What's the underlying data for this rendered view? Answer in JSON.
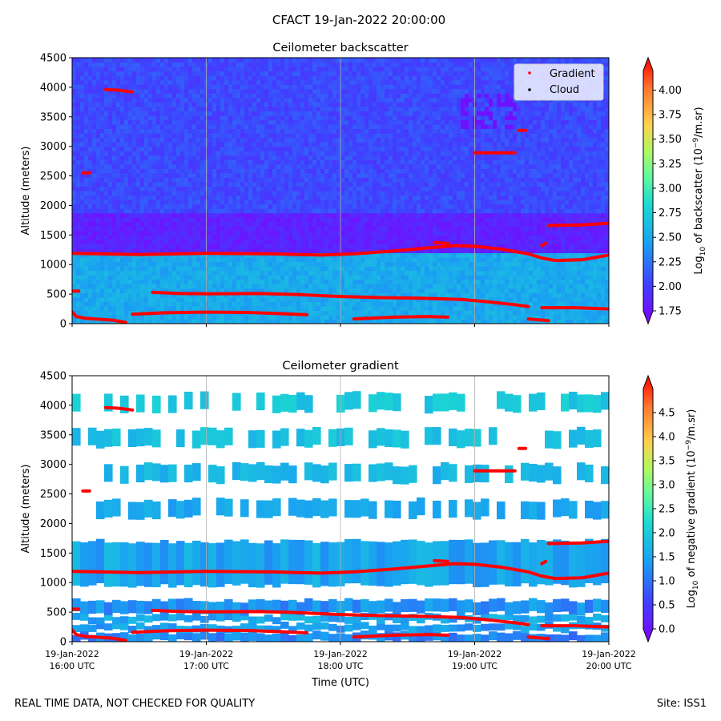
{
  "suptitle": "CFACT 19-Jan-2022 20:00:00",
  "footer_left": "REAL TIME DATA, NOT CHECKED FOR QUALITY",
  "footer_right": "Site: ISS1",
  "xlabel": "Time (UTC)",
  "x_ticks": [
    {
      "date": "19-Jan-2022",
      "time": "16:00 UTC",
      "hour": 16
    },
    {
      "date": "19-Jan-2022",
      "time": "17:00 UTC",
      "hour": 17
    },
    {
      "date": "19-Jan-2022",
      "time": "18:00 UTC",
      "hour": 18
    },
    {
      "date": "19-Jan-2022",
      "time": "19:00 UTC",
      "hour": 19
    },
    {
      "date": "19-Jan-2022",
      "time": "20:00 UTC",
      "hour": 20
    }
  ],
  "chart_data": [
    {
      "type": "heatmap",
      "title": "Ceilometer backscatter",
      "ylabel": "Altitude (meters)",
      "xlim": [
        16,
        20
      ],
      "ylim": [
        0,
        4500
      ],
      "y_ticks": [
        0,
        500,
        1000,
        1500,
        2000,
        2500,
        3000,
        3500,
        4000,
        4500
      ],
      "colorbar": {
        "label_pre": "Log",
        "label_sub": "10",
        "label_mid": " of backscatter (10",
        "label_sup": "−9",
        "label_post": "/m.sr)",
        "min": 1.75,
        "max": 4.2,
        "ticks": [
          "1.75",
          "2.00",
          "2.25",
          "2.50",
          "2.75",
          "3.00",
          "3.25",
          "3.50",
          "3.75",
          "4.00"
        ]
      },
      "legend": {
        "position": "top-right",
        "entries": [
          {
            "label": "Gradient",
            "color": "#ff0000"
          },
          {
            "label": "Cloud",
            "color": "#000000"
          }
        ]
      },
      "field_description": [
        {
          "alt_range": [
            0,
            1200
          ],
          "value": 2.55
        },
        {
          "alt_range": [
            1200,
            1900
          ],
          "value": 1.95
        },
        {
          "alt_range": [
            1900,
            4500
          ],
          "value": 2.15
        }
      ]
    },
    {
      "type": "heatmap",
      "title": "Ceilometer gradient",
      "ylabel": "Altitude (meters)",
      "xlim": [
        16,
        20
      ],
      "ylim": [
        0,
        4500
      ],
      "y_ticks": [
        0,
        500,
        1000,
        1500,
        2000,
        2500,
        3000,
        3500,
        4000,
        4500
      ],
      "colorbar": {
        "label_pre": "Log",
        "label_sub": "10",
        "label_mid": " of negative gradient (10",
        "label_sup": "−9",
        "label_post": "/m.sr)",
        "min": 0.0,
        "max": 5.0,
        "ticks": [
          "0.0",
          "0.5",
          "1.0",
          "1.5",
          "2.0",
          "2.5",
          "3.0",
          "3.5",
          "4.0",
          "4.5"
        ]
      },
      "bands": [
        {
          "alt_range": [
            0,
            150
          ],
          "value": 1.3
        },
        {
          "alt_range": [
            180,
            300
          ],
          "value": 1.5
        },
        {
          "alt_range": [
            330,
            450
          ],
          "value": 1.6
        },
        {
          "alt_range": [
            480,
            700
          ],
          "value": 1.4
        },
        {
          "alt_range": [
            950,
            1700
          ],
          "value": 1.6
        },
        {
          "alt_range": [
            2100,
            2400
          ],
          "value": 1.5
        },
        {
          "alt_range": [
            2700,
            3000
          ],
          "value": 1.7
        },
        {
          "alt_range": [
            3300,
            3600
          ],
          "value": 1.8
        },
        {
          "alt_range": [
            3900,
            4200
          ],
          "value": 1.9
        }
      ]
    }
  ],
  "gradient_layers": [
    {
      "name": "boundary-layer-top",
      "points": [
        [
          16.0,
          1190
        ],
        [
          16.5,
          1170
        ],
        [
          17.0,
          1190
        ],
        [
          17.5,
          1180
        ],
        [
          17.85,
          1160
        ],
        [
          18.1,
          1180
        ],
        [
          18.4,
          1230
        ],
        [
          18.7,
          1290
        ],
        [
          18.85,
          1320
        ],
        [
          19.0,
          1310
        ],
        [
          19.2,
          1260
        ],
        [
          19.4,
          1180
        ],
        [
          19.5,
          1110
        ],
        [
          19.6,
          1070
        ],
        [
          19.8,
          1080
        ],
        [
          19.9,
          1120
        ],
        [
          20.0,
          1160
        ]
      ]
    },
    {
      "name": "residual-layer",
      "points": [
        [
          16.6,
          530
        ],
        [
          16.8,
          510
        ],
        [
          17.0,
          505
        ],
        [
          17.4,
          510
        ],
        [
          17.7,
          490
        ],
        [
          18.0,
          460
        ],
        [
          18.3,
          440
        ],
        [
          18.6,
          430
        ],
        [
          18.9,
          410
        ],
        [
          19.1,
          370
        ],
        [
          19.3,
          320
        ],
        [
          19.4,
          290
        ]
      ]
    },
    {
      "name": "surface-layer",
      "points": [
        [
          16.45,
          160
        ],
        [
          16.7,
          185
        ],
        [
          17.0,
          195
        ],
        [
          17.3,
          190
        ],
        [
          17.55,
          170
        ],
        [
          17.75,
          150
        ]
      ]
    },
    {
      "name": "low-layer-a",
      "points": [
        [
          16.0,
          200
        ],
        [
          16.03,
          120
        ],
        [
          16.1,
          90
        ],
        [
          16.3,
          60
        ],
        [
          16.4,
          20
        ]
      ]
    },
    {
      "name": "low-layer-b",
      "points": [
        [
          18.1,
          80
        ],
        [
          18.4,
          110
        ],
        [
          18.65,
          120
        ],
        [
          18.8,
          110
        ]
      ]
    },
    {
      "name": "segment-1",
      "points": [
        [
          19.5,
          270
        ],
        [
          19.75,
          270
        ],
        [
          20.0,
          250
        ]
      ]
    },
    {
      "name": "segment-2",
      "points": [
        [
          19.4,
          80
        ],
        [
          19.55,
          50
        ]
      ]
    },
    {
      "name": "elevated-layer",
      "points": [
        [
          19.55,
          1660
        ],
        [
          19.8,
          1670
        ],
        [
          20.0,
          1700
        ]
      ]
    },
    {
      "name": "upper-layer-1",
      "points": [
        [
          16.25,
          3960
        ],
        [
          16.35,
          3950
        ],
        [
          16.45,
          3920
        ]
      ]
    },
    {
      "name": "upper-layer-2",
      "points": [
        [
          16.08,
          2550
        ],
        [
          16.13,
          2550
        ]
      ]
    },
    {
      "name": "upper-layer-3",
      "points": [
        [
          19.0,
          2890
        ],
        [
          19.3,
          2890
        ]
      ]
    },
    {
      "name": "upper-layer-4",
      "points": [
        [
          19.33,
          3270
        ],
        [
          19.38,
          3270
        ]
      ]
    },
    {
      "name": "upper-layer-5",
      "points": [
        [
          16.0,
          550
        ],
        [
          16.05,
          550
        ]
      ]
    },
    {
      "name": "segment-3",
      "points": [
        [
          18.7,
          1370
        ],
        [
          18.8,
          1360
        ]
      ]
    },
    {
      "name": "segment-4",
      "points": [
        [
          19.5,
          1320
        ],
        [
          19.53,
          1360
        ]
      ]
    }
  ]
}
